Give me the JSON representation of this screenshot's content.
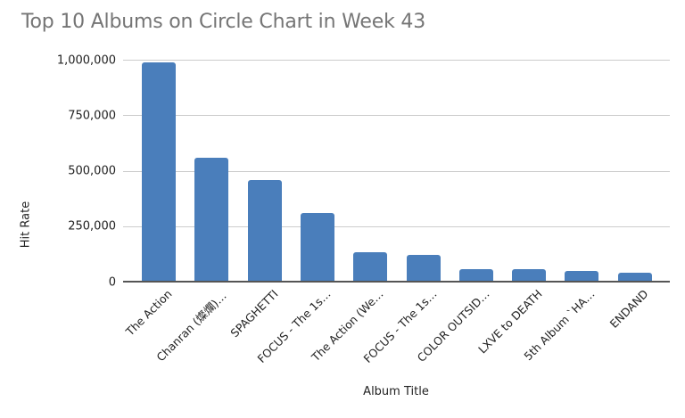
{
  "chart_data": {
    "type": "bar",
    "title": "Top 10 Albums on Circle Chart in Week 43",
    "xlabel": "Album Title",
    "ylabel": "Hit Rate",
    "ylim": [
      0,
      1000000
    ],
    "yticks": [
      "0",
      "250,000",
      "500,000",
      "750,000",
      "1,000,000"
    ],
    "grid": true,
    "legend": "none",
    "color": "#4a7ebb",
    "categories": [
      "The Action",
      "Chanran (燦爛)…",
      "SPAGHETTI",
      "FOCUS - The 1s…",
      "The Action (We…",
      "FOCUS - The 1s…",
      "COLOR OUTSID…",
      "LXVE to DEATH",
      "5th Album `HA…",
      "ENDAND"
    ],
    "values": [
      986000,
      558000,
      459000,
      308000,
      131000,
      122000,
      55000,
      55000,
      49000,
      40000
    ]
  }
}
